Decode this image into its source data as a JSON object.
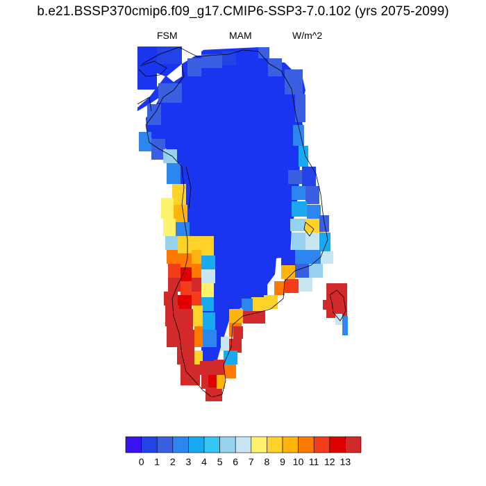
{
  "header": {
    "title": "b.e21.BSSP370cmip6.f09_g17.CMIP6-SSP3-7.0.102 (yrs 2075-2099)",
    "variable": "FSM",
    "season": "MAM",
    "units": "W/m^2"
  },
  "colorbar": {
    "colors": [
      "#3b12f0",
      "#2244e6",
      "#3a5fe0",
      "#2d86f0",
      "#18a9f0",
      "#34c6f4",
      "#96d2ee",
      "#c8e6f2",
      "#fff36b",
      "#ffd22a",
      "#ffb50e",
      "#ff7a00",
      "#f23c1a",
      "#e00000",
      "#d22a2a"
    ],
    "labels": [
      "0",
      "1",
      "2",
      "3",
      "4",
      "5",
      "6",
      "7",
      "8",
      "9",
      "10",
      "11",
      "12",
      "13"
    ]
  },
  "map": {
    "region": "Greenland",
    "field_color": "#1a35f0"
  }
}
